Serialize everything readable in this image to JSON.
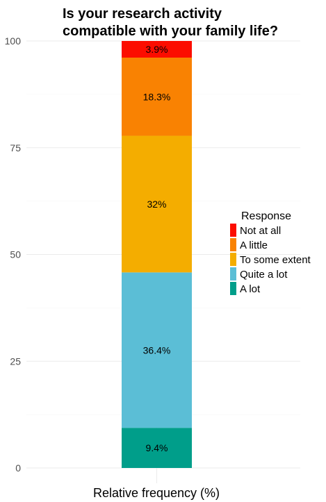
{
  "chart_data": {
    "type": "bar",
    "stacked": true,
    "title_lines": [
      "Is your research activity",
      "compatible with your family life?"
    ],
    "xlabel": "Relative frequency (%)",
    "ylabel": "",
    "ylim": [
      0,
      100
    ],
    "yticks": [
      "0",
      "25",
      "50",
      "75",
      "100"
    ],
    "grid": true,
    "legend_position": "right",
    "legend_title": "Response",
    "series": [
      {
        "name": "A lot",
        "value": 9.4,
        "label": "9.4%",
        "color": "#009E8A"
      },
      {
        "name": "Quite a lot",
        "value": 36.4,
        "label": "36.4%",
        "color": "#5BBED6"
      },
      {
        "name": "To some extent",
        "value": 32.0,
        "label": "32%",
        "color": "#F4AD00"
      },
      {
        "name": "A little",
        "value": 18.3,
        "label": "18.3%",
        "color": "#F98202"
      },
      {
        "name": "Not at all",
        "value": 3.9,
        "label": "3.9%",
        "color": "#FC0D00"
      }
    ],
    "legend_order": [
      "Not at all",
      "A little",
      "To some extent",
      "Quite a lot",
      "A lot"
    ]
  }
}
